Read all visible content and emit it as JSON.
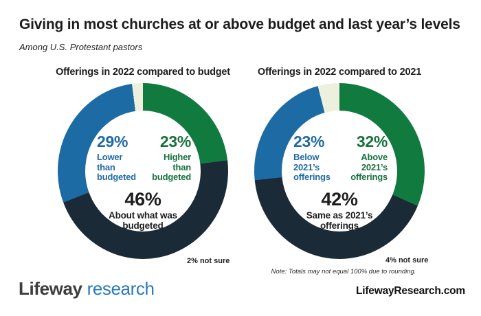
{
  "header": {
    "title": "Giving in most churches at or above budget and last year’s levels",
    "subtitle": "Among U.S. Protestant pastors"
  },
  "note": "Note: Totals may not equal 100% due to rounding.",
  "footer": {
    "logo_word1": "Lifeway",
    "logo_word2": "research",
    "website": "LifewayResearch.com"
  },
  "colors": {
    "segment_green": "#107a3f",
    "segment_dark": "#1b2a37",
    "segment_blue": "#1d6ba4",
    "segment_cream": "#edf0dc",
    "text_blue": "#1f6aa6",
    "text_green": "#17713d",
    "logo_blue": "#2b7ab8"
  },
  "chart_data": [
    {
      "type": "pie",
      "subtype": "donut",
      "title": "Offerings in 2022 compared to budget",
      "legend_position": "none",
      "segments": [
        {
          "label": "Higher than budgeted",
          "value": 23,
          "color": "#107a3f"
        },
        {
          "label": "About what was budgeted",
          "value": 46,
          "color": "#1b2a37"
        },
        {
          "label": "Lower than budgeted",
          "value": 29,
          "color": "#1d6ba4"
        },
        {
          "label": "Not sure",
          "value": 2,
          "color": "#edf0dc"
        }
      ],
      "callouts": {
        "blue_pct": "29%",
        "blue_label": "Lower\nthan\nbudgeted",
        "green_pct": "23%",
        "green_label": "Higher\nthan\nbudgeted",
        "center_pct": "46%",
        "center_label": "About what was\nbudgeted",
        "outside": "2% not sure"
      }
    },
    {
      "type": "pie",
      "subtype": "donut",
      "title": "Offerings in 2022 compared to 2021",
      "legend_position": "none",
      "segments": [
        {
          "label": "Above 2021’s offerings",
          "value": 32,
          "color": "#107a3f"
        },
        {
          "label": "Same as 2021’s offerings",
          "value": 42,
          "color": "#1b2a37"
        },
        {
          "label": "Below 2021’s offerings",
          "value": 23,
          "color": "#1d6ba4"
        },
        {
          "label": "Not sure",
          "value": 4,
          "color": "#edf0dc"
        }
      ],
      "callouts": {
        "blue_pct": "23%",
        "blue_label": "Below\n2021’s\nofferings",
        "green_pct": "32%",
        "green_label": "Above\n2021’s\nofferings",
        "center_pct": "42%",
        "center_label": "Same as 2021’s\nofferings",
        "outside": "4% not sure"
      }
    }
  ]
}
